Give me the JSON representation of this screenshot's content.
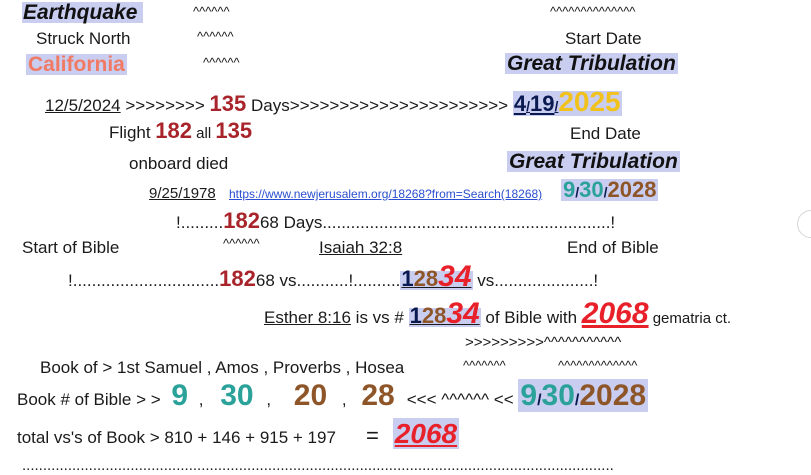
{
  "left_header": {
    "earthquake": "Earthquake",
    "struck_north": "Struck North",
    "california": "California"
  },
  "carets": {
    "c1": "^^^^^^",
    "c2": "^^^^^^",
    "c3": "^^^^^^",
    "c4": "^^^^^^^^^^^^^^"
  },
  "right_header": {
    "start_date": "Start Date",
    "great_tribulation_1": "Great Tribulation",
    "end_date": "End Date",
    "great_tribulation_2": "Great Tribulation"
  },
  "line_135": {
    "date": "12/5/2024",
    "arrows": " >>>>>>>> ",
    "num": "135",
    "text": " Days>>>>>>>>>>>>>>>>>>>>>> ",
    "d1": "4",
    "s1": "/",
    "d2": "19",
    "s2": "/",
    "d3": "2025"
  },
  "flight": {
    "label": "Flight ",
    "n182": "182",
    "all": " all ",
    "n135": "135",
    "onboard": "onboard died"
  },
  "line_1978": {
    "date": "9/25/1978",
    "url": "https://www.newjerusalem.org/18268?from=Search(18268)",
    "d1": "9",
    "s1": "/",
    "d2": "30",
    "s2": "/",
    "d3": "2028"
  },
  "days_line": {
    "bang": "!.........",
    "n182": "182",
    "rest": "68 Days.............................................................!"
  },
  "bible_line": {
    "start": "Start of Bible",
    "carets": "^^^^^^",
    "isaiah": "Isaiah 32:8",
    "end": "End of Bible"
  },
  "vs_line": {
    "lead": "!...............................",
    "n182": "182",
    "mid": "68  vs...........!..........",
    "one": "1",
    "two8": "28",
    "three4": "34",
    "tail": " vs.....................!"
  },
  "esther_line": {
    "ref": "Esther 8:16",
    "mid": " is vs # ",
    "one": "1",
    "two8": "28",
    "three4": "34",
    "ofbible": " of Bible with ",
    "n2068": "2068",
    "gem": " gematria ct."
  },
  "arrows_carets": {
    "arrows": ">>>>>>>>>^^^^^^^^^^^",
    "c1": "^^^^^^^",
    "c2": "^^^^^^^^^^^^^"
  },
  "book_of": {
    "text": "Book of > 1st Samuel ,  Amos  ,  Proverbs ,  Hosea"
  },
  "book_num": {
    "label": "Book # of Bible > > ",
    "n9": "9",
    "c1": " , ",
    "n30": "30",
    "c2": " , ",
    "n20": "20",
    "c3": " , ",
    "n28": "28",
    "mid": "<<< ^^^^^^  << ",
    "d1": "9",
    "s1": "/",
    "d2": "30",
    "s2": "/",
    "d3": "2028"
  },
  "total": {
    "label": "total vs's of Book > 810   +  146   +     915     +   197",
    "eq": "=",
    "n2068": "2068"
  },
  "bottom_dots": ".............................................................................................................................................."
}
